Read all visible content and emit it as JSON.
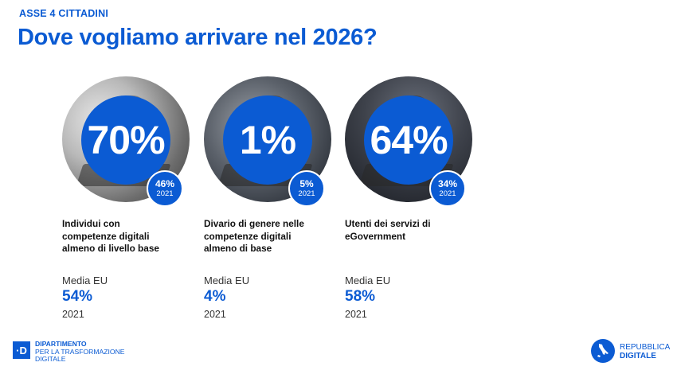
{
  "header": {
    "kicker": "ASSE 4 CITTADINI",
    "title": "Dove vogliamo arrivare nel 2026?"
  },
  "colors": {
    "brand_blue": "#0b5bd3",
    "text_dark": "#111111"
  },
  "cards": [
    {
      "target": "70%",
      "baseline_value": "46%",
      "baseline_year": "2021",
      "description_lines": [
        "Individui con",
        "competenze digitali",
        "almeno di livello base"
      ],
      "eu_label": "Media EU",
      "eu_value": "54%",
      "eu_year": "2021"
    },
    {
      "target": "1%",
      "baseline_value": "5%",
      "baseline_year": "2021",
      "description_lines": [
        "Divario di genere nelle",
        "competenze digitali",
        "almeno di base"
      ],
      "eu_label": "Media EU",
      "eu_value": "4%",
      "eu_year": "2021"
    },
    {
      "target": "64%",
      "baseline_value": "34%",
      "baseline_year": "2021",
      "description_lines": [
        "Utenti dei servizi di",
        "eGovernment"
      ],
      "eu_label": "Media EU",
      "eu_value": "58%",
      "eu_year": "2021"
    }
  ],
  "footer": {
    "dept_logo_glyph": "·D",
    "dept_lines": [
      "DIPARTIMENTO",
      "PER LA TRASFORMAZIONE",
      "DIGITALE"
    ],
    "rep_icon": "italy-map-icon",
    "rep_lines": [
      "REPUBBLICA",
      "DIGITALE"
    ]
  }
}
